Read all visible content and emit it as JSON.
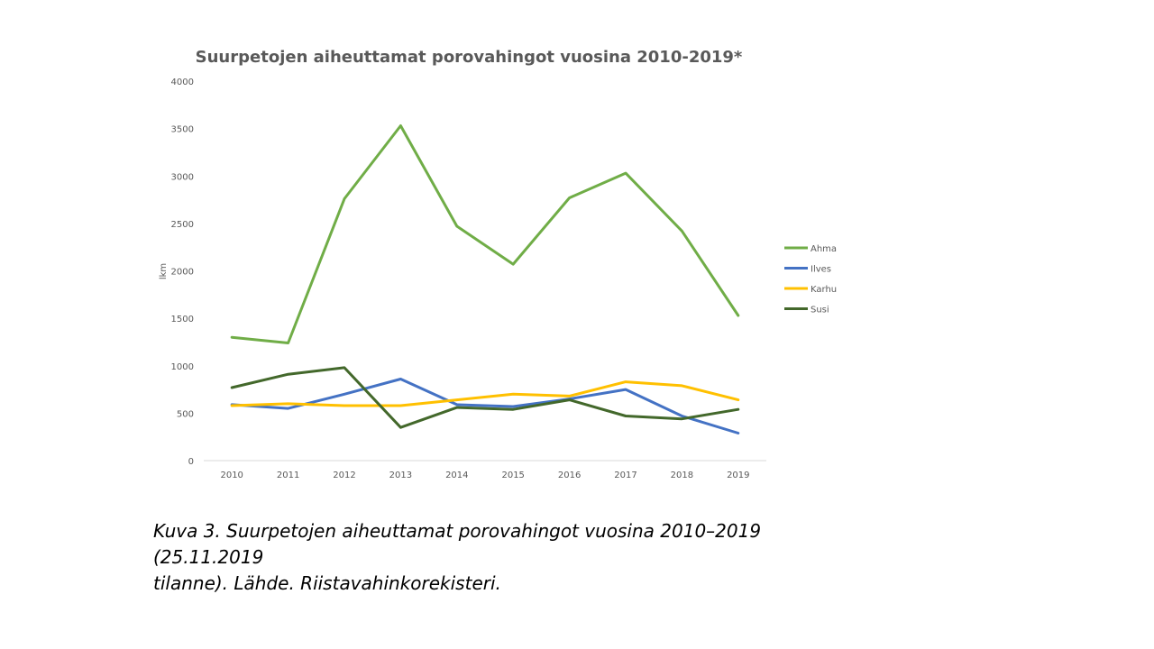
{
  "chart_data": {
    "type": "line",
    "title": "Suurpetojen  aiheuttamat  porovahingot  vuosina  2010-2019*",
    "xlabel": "",
    "ylabel": "lkm",
    "ylim": [
      0,
      4000
    ],
    "yticks": [
      0,
      500,
      1000,
      1500,
      2000,
      2500,
      3000,
      3500,
      4000
    ],
    "categories": [
      "2010",
      "2011",
      "2012",
      "2013",
      "2014",
      "2015",
      "2016",
      "2017",
      "2018",
      "2019"
    ],
    "legend_position": "right",
    "series": [
      {
        "name": "Ahma",
        "color": "#70ad47",
        "values": [
          1300,
          1240,
          2760,
          3530,
          2470,
          2070,
          2770,
          3030,
          2420,
          1530
        ]
      },
      {
        "name": "Ilves",
        "color": "#4472c4",
        "values": [
          590,
          550,
          700,
          860,
          590,
          570,
          650,
          750,
          470,
          290
        ]
      },
      {
        "name": "Karhu",
        "color": "#ffc000",
        "values": [
          580,
          600,
          580,
          580,
          640,
          700,
          680,
          830,
          790,
          640
        ]
      },
      {
        "name": "Susi",
        "color": "#43682b",
        "values": [
          770,
          910,
          980,
          350,
          560,
          540,
          640,
          470,
          440,
          540
        ]
      }
    ]
  },
  "caption": {
    "line1": "Kuva 3. Suurpetojen aiheuttamat porovahingot vuosina 2010–2019 (25.11.2019",
    "line2": "tilanne). Lähde. Riistavahinkorekisteri."
  }
}
